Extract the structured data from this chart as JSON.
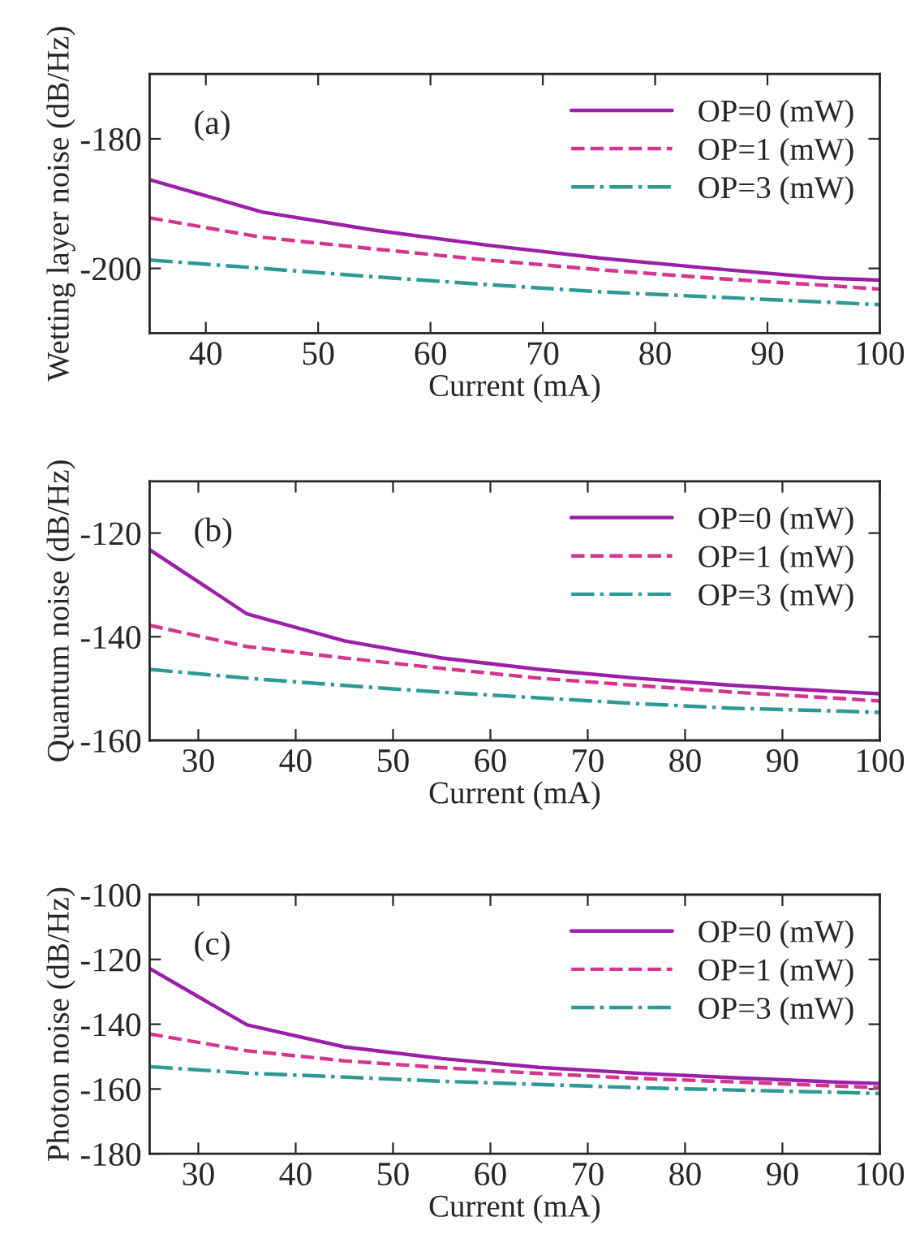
{
  "chart_data": [
    {
      "type": "line",
      "xlabel": "Current (mA)",
      "ylabel": "Wetting layer noise (dB/Hz)",
      "annotations": [
        "(a)"
      ],
      "legend": "top right",
      "grid": false,
      "marker": "none",
      "x": [
        35,
        45,
        55,
        65,
        75,
        85,
        95,
        100
      ],
      "xlim": [
        35,
        100
      ],
      "xticks": [
        40,
        50,
        60,
        70,
        80,
        90,
        100
      ],
      "ylim": [
        -210,
        -170
      ],
      "yticks": [
        -180,
        -200
      ],
      "series": [
        {
          "name": "OP=0 (mW)",
          "color": "#9c1fa8",
          "line_style": "solid",
          "values": [
            -186.3,
            -191.3,
            -194.1,
            -196.4,
            -198.4,
            -200,
            -201.5,
            -201.8
          ]
        },
        {
          "name": "OP=1 (mW)",
          "color": "#d4368f",
          "line_style": "dashed",
          "values": [
            -192.2,
            -195.2,
            -197,
            -198.7,
            -200.2,
            -201.5,
            -202.6,
            -203.2
          ]
        },
        {
          "name": "OP=3 (mW)",
          "color": "#2e9a96",
          "line_style": "dashdot",
          "values": [
            -198.7,
            -200,
            -201.3,
            -202.5,
            -203.6,
            -204.4,
            -205.2,
            -205.6
          ]
        }
      ]
    },
    {
      "type": "line",
      "xlabel": "Current (mA)",
      "ylabel": "Quantum noise (dB/Hz)",
      "annotations": [
        "(b)"
      ],
      "legend": "top right",
      "grid": false,
      "marker": "none",
      "x": [
        25,
        35,
        45,
        55,
        65,
        75,
        85,
        95,
        100
      ],
      "xlim": [
        25,
        100
      ],
      "xticks": [
        30,
        40,
        50,
        60,
        70,
        80,
        90,
        100
      ],
      "ylim": [
        -160,
        -110
      ],
      "yticks": [
        -120,
        -140,
        -160
      ],
      "series": [
        {
          "name": "OP=0 (mW)",
          "color": "#9c1fa8",
          "line_style": "solid",
          "values": [
            -123.2,
            -135.6,
            -140.8,
            -144.1,
            -146.3,
            -148,
            -149.4,
            -150.5,
            -151
          ]
        },
        {
          "name": "OP=1 (mW)",
          "color": "#d4368f",
          "line_style": "dashed",
          "values": [
            -137.8,
            -141.9,
            -144.1,
            -146.1,
            -148,
            -149.4,
            -150.7,
            -151.8,
            -152.4
          ]
        },
        {
          "name": "OP=3 (mW)",
          "color": "#2e9a96",
          "line_style": "dashdot",
          "values": [
            -146.3,
            -148,
            -149.4,
            -150.7,
            -151.8,
            -152.9,
            -153.8,
            -154.3,
            -154.6
          ]
        }
      ]
    },
    {
      "type": "line",
      "xlabel": "Current (mA)",
      "ylabel": "Photon noise (dB/Hz)",
      "annotations": [
        "(c)"
      ],
      "legend": "top right",
      "grid": false,
      "marker": "none",
      "x": [
        25,
        35,
        45,
        55,
        65,
        75,
        85,
        95,
        100
      ],
      "xlim": [
        25,
        100
      ],
      "xticks": [
        30,
        40,
        50,
        60,
        70,
        80,
        90,
        100
      ],
      "ylim": [
        -180,
        -100
      ],
      "yticks": [
        -100,
        -120,
        -140,
        -160,
        -180
      ],
      "series": [
        {
          "name": "OP=0 (mW)",
          "color": "#9c1fa8",
          "line_style": "solid",
          "values": [
            -122.8,
            -140.2,
            -147,
            -150.6,
            -153.3,
            -155.1,
            -156.5,
            -157.8,
            -158.3
          ]
        },
        {
          "name": "OP=1 (mW)",
          "color": "#d4368f",
          "line_style": "dashed",
          "values": [
            -143,
            -148.2,
            -151.3,
            -153.4,
            -155.2,
            -156.7,
            -157.8,
            -159,
            -159.6
          ]
        },
        {
          "name": "OP=3 (mW)",
          "color": "#2e9a96",
          "line_style": "dashdot",
          "values": [
            -153.1,
            -155.1,
            -156.3,
            -157.6,
            -158.6,
            -159.6,
            -160.3,
            -161,
            -161.4
          ]
        }
      ]
    }
  ]
}
